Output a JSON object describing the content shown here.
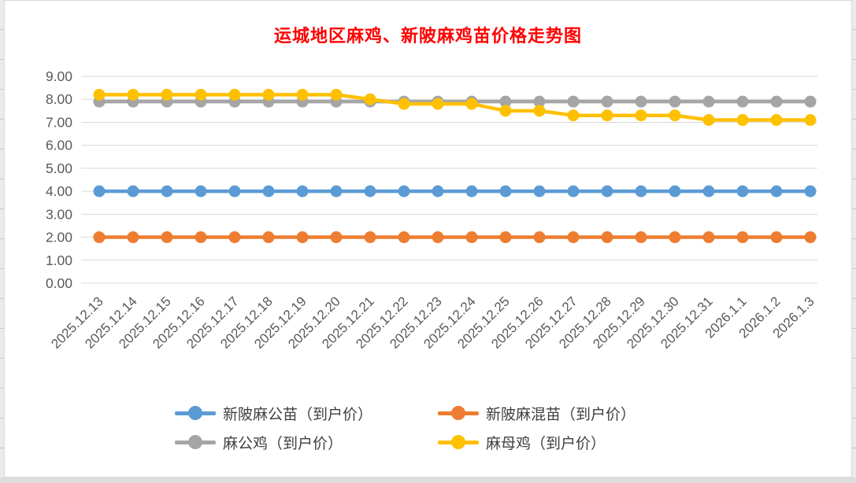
{
  "chart_data": {
    "type": "line",
    "title": "运城地区麻鸡、新陂麻鸡苗价格走势图",
    "title_color": "#FF0000",
    "categories": [
      "2025.12.13",
      "2025.12.14",
      "2025.12.15",
      "2025.12.16",
      "2025.12.17",
      "2025.12.18",
      "2025.12.19",
      "2025.12.20",
      "2025.12.21",
      "2025.12.22",
      "2025.12.23",
      "2025.12.24",
      "2025.12.25",
      "2025.12.26",
      "2025.12.27",
      "2025.12.28",
      "2025.12.29",
      "2025.12.30",
      "2025.12.31",
      "2026.1.1",
      "2026.1.2",
      "2026.1.3"
    ],
    "series": [
      {
        "id": "xinpo-ma-male-chick",
        "name": "新陂麻公苗（到户价）",
        "color": "#5B9BD5",
        "values": [
          4.0,
          4.0,
          4.0,
          4.0,
          4.0,
          4.0,
          4.0,
          4.0,
          4.0,
          4.0,
          4.0,
          4.0,
          4.0,
          4.0,
          4.0,
          4.0,
          4.0,
          4.0,
          4.0,
          4.0,
          4.0,
          4.0
        ]
      },
      {
        "id": "xinpo-ma-mixed-chick",
        "name": "新陂麻混苗（到户价）",
        "color": "#ED7D31",
        "values": [
          2.0,
          2.0,
          2.0,
          2.0,
          2.0,
          2.0,
          2.0,
          2.0,
          2.0,
          2.0,
          2.0,
          2.0,
          2.0,
          2.0,
          2.0,
          2.0,
          2.0,
          2.0,
          2.0,
          2.0,
          2.0,
          2.0
        ]
      },
      {
        "id": "ma-rooster",
        "name": "麻公鸡（到户价）",
        "color": "#A5A5A5",
        "values": [
          7.9,
          7.9,
          7.9,
          7.9,
          7.9,
          7.9,
          7.9,
          7.9,
          7.9,
          7.9,
          7.9,
          7.9,
          7.9,
          7.9,
          7.9,
          7.9,
          7.9,
          7.9,
          7.9,
          7.9,
          7.9,
          7.9
        ]
      },
      {
        "id": "ma-hen",
        "name": "麻母鸡（到户价）",
        "color": "#FFC000",
        "values": [
          8.2,
          8.2,
          8.2,
          8.2,
          8.2,
          8.2,
          8.2,
          8.2,
          8.0,
          7.8,
          7.8,
          7.8,
          7.5,
          7.5,
          7.3,
          7.3,
          7.3,
          7.3,
          7.1,
          7.1,
          7.1,
          7.1
        ]
      }
    ],
    "ylim": [
      0,
      9
    ],
    "ytick_step": 1,
    "ytick_format": "two-decimals",
    "ytick_labels": [
      "0.00",
      "1.00",
      "2.00",
      "3.00",
      "4.00",
      "5.00",
      "6.00",
      "7.00",
      "8.00",
      "9.00"
    ],
    "grid": true,
    "gridline_color": "#D9D9D9",
    "axis_label_color": "#595959",
    "x_label_rotation_deg": -45,
    "legend_position": "bottom"
  }
}
